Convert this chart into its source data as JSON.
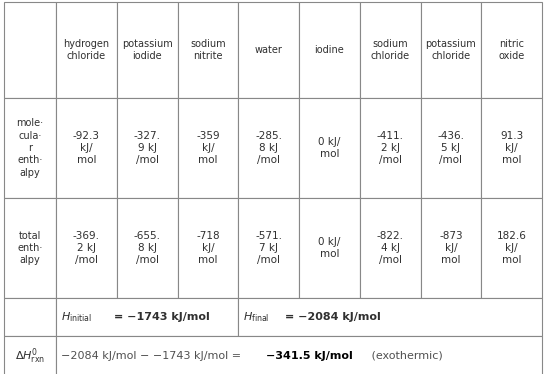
{
  "col_headers": [
    "hydrogen\nchloride",
    "potassium\niodide",
    "sodium\nnitrite",
    "water",
    "iodine",
    "sodium\nchloride",
    "potassium\nchloride",
    "nitric\noxide"
  ],
  "mol_enthalpy": [
    "-92.3\nkJ/\nmol",
    "-327.9 kJ\n/mol",
    "-359\nkJ/\nmol",
    "-285.\n8 kJ\n/mol",
    "0 kJ/\nmol",
    "-411.\n2 kJ\n/mol",
    "-436.\n5 kJ\n/mol",
    "91.3\nkJ/\nmol"
  ],
  "total_enthalpy": [
    "-369.\n2 kJ\n/mol",
    "-655.\n8 kJ\n/mol",
    "-718\nkJ/\nmol",
    "-571.\n7 kJ\n/mol",
    "0 kJ/\nmol",
    "-822.\n4 kJ\n/mol",
    "-873\nkJ/\nmol",
    "182.6\nkJ/\nmol"
  ],
  "bg_color": "#ffffff",
  "border_color": "#888888",
  "text_color": "#303030",
  "figsize": [
    5.46,
    3.74
  ],
  "dpi": 100
}
